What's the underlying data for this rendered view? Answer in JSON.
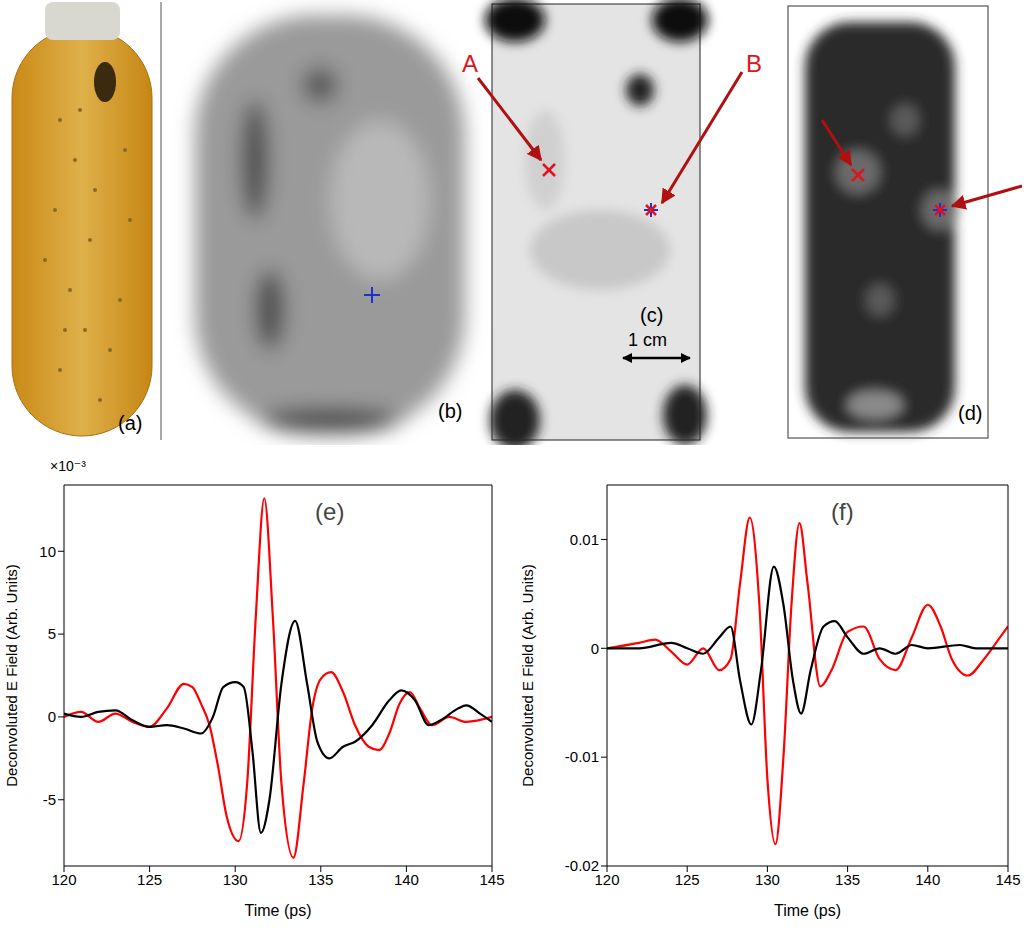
{
  "images": [
    {
      "label": "(a)"
    },
    {
      "label": "(b)"
    },
    {
      "label": "(c)",
      "annotations": [
        "A",
        "B"
      ],
      "scale_bar": "1 cm"
    },
    {
      "label": "(d)"
    }
  ],
  "chart_data": [
    {
      "type": "line",
      "panel_label": "(e)",
      "x_label": "Time (ps)",
      "y_label": "Deconvoluted E Field (Arb. Units)",
      "y_scale_label": "×10⁻³",
      "xlim": [
        120,
        145
      ],
      "xticks": [
        120,
        125,
        130,
        135,
        140,
        145
      ],
      "ylim": [
        -9,
        14
      ],
      "yticks": [
        -5,
        0,
        5,
        10
      ],
      "series": [
        {
          "color": "#ff0000",
          "x": [
            120,
            121,
            122,
            123,
            124,
            125,
            126,
            127,
            127.5,
            128,
            128.5,
            129,
            129.5,
            130.2,
            130.7,
            131.2,
            131.7,
            132.2,
            132.7,
            133.4,
            134,
            134.5,
            135,
            135.6,
            136.3,
            137,
            137.8,
            138.4,
            139,
            139.6,
            140.2,
            140.8,
            141.5,
            142.5,
            143.5,
            145
          ],
          "values": [
            0,
            0.3,
            -0.3,
            0.2,
            -0.3,
            -0.6,
            0.5,
            2.0,
            1.8,
            0.8,
            -0.5,
            -3,
            -6,
            -7.5,
            -4,
            6,
            13.2,
            6,
            -4,
            -8.5,
            -4,
            0.5,
            2.3,
            2.7,
            1.5,
            -0.5,
            -1.8,
            -2,
            -1,
            0.8,
            1.5,
            0.5,
            -0.5,
            0,
            -0.3,
            0
          ]
        },
        {
          "color": "#000000",
          "x": [
            120,
            121,
            122,
            123,
            124,
            125,
            126,
            127,
            128,
            128.7,
            129.3,
            130,
            130.5,
            131,
            131.5,
            132,
            132.7,
            133.5,
            134.2,
            134.8,
            135.5,
            136.3,
            137,
            138,
            139,
            139.7,
            140.5,
            141.3,
            142,
            143,
            143.5,
            144.3,
            145
          ],
          "values": [
            0.2,
            0,
            0.3,
            0.4,
            -0.2,
            -0.6,
            -0.5,
            -0.7,
            -1,
            0,
            1.8,
            2.1,
            1.8,
            -2,
            -7,
            -5,
            2,
            5.8,
            2,
            -1.5,
            -2.5,
            -1.8,
            -1.5,
            -0.5,
            1,
            1.6,
            1,
            -0.5,
            -0.2,
            0.5,
            0.7,
            0.2,
            -0.3
          ]
        }
      ]
    },
    {
      "type": "line",
      "panel_label": "(f)",
      "x_label": "Time (ps)",
      "y_label": "Deconvoluted E Field (Arb. Units)",
      "xlim": [
        120,
        145
      ],
      "xticks": [
        120,
        125,
        130,
        135,
        140,
        145
      ],
      "ylim": [
        -0.02,
        0.015
      ],
      "yticks": [
        -0.02,
        -0.01,
        0,
        0.01
      ],
      "series": [
        {
          "color": "#ff0000",
          "x": [
            120,
            122,
            123,
            124,
            125,
            126,
            127,
            127.7,
            128.3,
            128.9,
            129.5,
            130,
            130.5,
            131,
            131.5,
            132,
            132.5,
            133.3,
            134,
            135,
            136,
            137,
            138,
            139,
            140,
            140.8,
            141.5,
            142.5,
            143.5,
            144.5,
            145
          ],
          "values": [
            0,
            0.0005,
            0.0008,
            -0.0003,
            -0.0015,
            0,
            -0.002,
            -0.001,
            0.006,
            0.012,
            0.004,
            -0.012,
            -0.018,
            -0.01,
            0.004,
            0.0115,
            0.006,
            -0.0035,
            -0.002,
            0.0015,
            0.002,
            -0.001,
            -0.002,
            0.001,
            0.004,
            0.002,
            -0.001,
            -0.0025,
            -0.001,
            0.001,
            0.002
          ]
        },
        {
          "color": "#000000",
          "x": [
            120,
            122,
            124,
            125,
            126,
            127,
            127.7,
            128.3,
            129,
            129.6,
            130.4,
            131,
            131.6,
            132.1,
            132.7,
            133.5,
            134.2,
            135,
            136,
            137,
            138,
            139,
            140,
            142,
            143,
            145
          ],
          "values": [
            0,
            0,
            0.0005,
            0,
            -0.0005,
            0.001,
            0.002,
            -0.003,
            -0.007,
            -0.002,
            0.0075,
            0.004,
            -0.003,
            -0.006,
            -0.002,
            0.002,
            0.0025,
            0.001,
            -0.0005,
            0,
            -0.0005,
            0.0003,
            0,
            0.0003,
            0,
            0
          ]
        }
      ]
    }
  ]
}
